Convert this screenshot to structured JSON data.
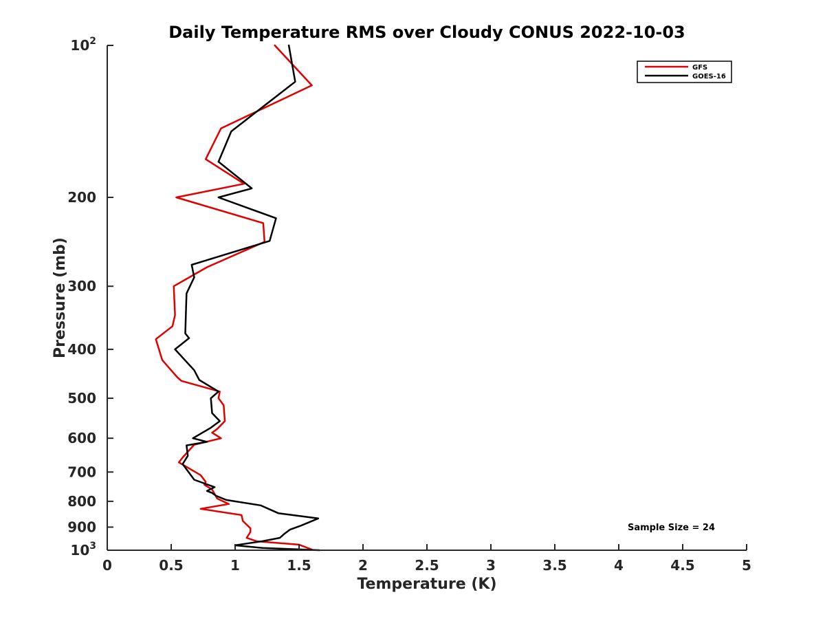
{
  "chart_data": {
    "type": "line",
    "title": "Daily Temperature RMS over Cloudy CONUS 2022-10-03",
    "xlabel": "Temperature (K)",
    "ylabel": "Pressure (mb)",
    "xlim": [
      0,
      5
    ],
    "ylim": [
      100,
      1000
    ],
    "y_scale": "log",
    "y_reversed": true,
    "grid": false,
    "legend_position": "top-right",
    "x_ticks": [
      0,
      0.5,
      1,
      1.5,
      2,
      2.5,
      3,
      3.5,
      4,
      4.5,
      5
    ],
    "x_tick_labels": [
      "0",
      "0.5",
      "1",
      "1.5",
      "2",
      "2.5",
      "3",
      "3.5",
      "4",
      "4.5",
      "5"
    ],
    "y_ticks": [
      {
        "value": 100,
        "base": "10",
        "exp": "2"
      },
      {
        "value": 200,
        "label": "200"
      },
      {
        "value": 300,
        "label": "300"
      },
      {
        "value": 400,
        "label": "400"
      },
      {
        "value": 500,
        "label": "500"
      },
      {
        "value": 600,
        "label": "600"
      },
      {
        "value": 700,
        "label": "700"
      },
      {
        "value": 800,
        "label": "800"
      },
      {
        "value": 900,
        "label": "900"
      },
      {
        "value": 1000,
        "base": "10",
        "exp": "3"
      }
    ],
    "annotation": "Sample Size = 24",
    "series": [
      {
        "name": "GFS",
        "color": "#e00000",
        "points": [
          [
            1.31,
            100
          ],
          [
            1.6,
            120
          ],
          [
            0.89,
            146
          ],
          [
            0.77,
            168
          ],
          [
            1.07,
            188
          ],
          [
            0.54,
            200
          ],
          [
            1.22,
            225
          ],
          [
            1.23,
            245
          ],
          [
            0.78,
            275
          ],
          [
            0.52,
            300
          ],
          [
            0.53,
            342
          ],
          [
            0.51,
            360
          ],
          [
            0.38,
            382
          ],
          [
            0.43,
            420
          ],
          [
            0.55,
            455
          ],
          [
            0.58,
            462
          ],
          [
            0.88,
            485
          ],
          [
            0.87,
            500
          ],
          [
            0.91,
            516
          ],
          [
            0.92,
            555
          ],
          [
            0.86,
            575
          ],
          [
            0.82,
            585
          ],
          [
            0.89,
            600
          ],
          [
            0.68,
            618
          ],
          [
            0.59,
            655
          ],
          [
            0.56,
            670
          ],
          [
            0.73,
            710
          ],
          [
            0.77,
            732
          ],
          [
            0.76,
            742
          ],
          [
            0.82,
            758
          ],
          [
            0.86,
            790
          ],
          [
            0.95,
            810
          ],
          [
            0.73,
            828
          ],
          [
            1.05,
            852
          ],
          [
            1.06,
            875
          ],
          [
            1.12,
            905
          ],
          [
            1.12,
            920
          ],
          [
            1.09,
            945
          ],
          [
            1.17,
            960
          ],
          [
            1.5,
            975
          ],
          [
            1.6,
            997
          ]
        ]
      },
      {
        "name": "GOES-16",
        "color": "#000000",
        "points": [
          [
            1.42,
            100
          ],
          [
            1.47,
            118
          ],
          [
            0.97,
            148
          ],
          [
            0.87,
            170
          ],
          [
            1.13,
            192
          ],
          [
            0.87,
            200
          ],
          [
            1.32,
            220
          ],
          [
            1.27,
            244
          ],
          [
            0.66,
            272
          ],
          [
            0.68,
            288
          ],
          [
            0.62,
            310
          ],
          [
            0.61,
            372
          ],
          [
            0.64,
            380
          ],
          [
            0.53,
            400
          ],
          [
            0.68,
            440
          ],
          [
            0.7,
            450
          ],
          [
            0.72,
            460
          ],
          [
            0.87,
            485
          ],
          [
            0.81,
            500
          ],
          [
            0.82,
            535
          ],
          [
            0.88,
            555
          ],
          [
            0.81,
            572
          ],
          [
            0.67,
            600
          ],
          [
            0.78,
            610
          ],
          [
            0.62,
            620
          ],
          [
            0.63,
            650
          ],
          [
            0.59,
            675
          ],
          [
            0.68,
            725
          ],
          [
            0.84,
            750
          ],
          [
            0.78,
            763
          ],
          [
            0.82,
            770
          ],
          [
            0.85,
            780
          ],
          [
            0.93,
            795
          ],
          [
            1.2,
            815
          ],
          [
            1.34,
            845
          ],
          [
            1.65,
            865
          ],
          [
            1.51,
            895
          ],
          [
            1.43,
            910
          ],
          [
            1.38,
            930
          ],
          [
            1.35,
            945
          ],
          [
            1.21,
            960
          ],
          [
            1.09,
            970
          ],
          [
            1.0,
            978
          ],
          [
            1.22,
            990
          ],
          [
            1.66,
            1000
          ]
        ]
      }
    ]
  }
}
